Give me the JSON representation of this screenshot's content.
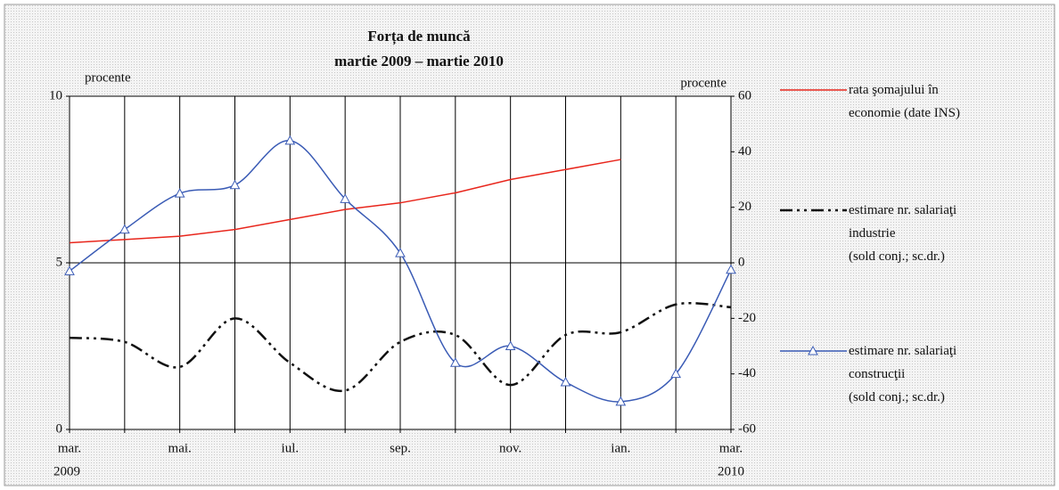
{
  "chart_data": {
    "type": "line",
    "title": "Forța de muncă",
    "subtitle": "martie 2009 – martie 2010",
    "y_label": "procente",
    "y2_label": "procente",
    "categories": [
      "mar.",
      null,
      "mai.",
      null,
      "iul.",
      null,
      "sep.",
      null,
      "nov.",
      null,
      "ian.",
      null,
      "mar."
    ],
    "category_years": [
      "2009",
      null,
      null,
      null,
      null,
      null,
      null,
      null,
      null,
      null,
      null,
      null,
      "2010"
    ],
    "ylim": [
      0,
      10
    ],
    "yticks": [
      0,
      5,
      10
    ],
    "y2lim": [
      -60,
      60
    ],
    "y2ticks": [
      -60,
      -40,
      -20,
      0,
      20,
      40,
      60
    ],
    "grid": "x",
    "series": [
      {
        "name": "rata şomajului în\neconomie (date INS)",
        "color": "#e8261c",
        "style": "solid",
        "smooth": false,
        "values": [
          5.6,
          5.7,
          5.8,
          6.0,
          6.3,
          6.6,
          6.8,
          7.1,
          7.5,
          7.8,
          8.1,
          null,
          null
        ]
      },
      {
        "name": "estimare nr. salariaţi\nindustrie\n(sold conj.; sc.dr.)",
        "color": "#111111",
        "style": "dashdot",
        "smooth": true,
        "axis": "y2",
        "values": [
          -27,
          -28.5,
          -37.5,
          -20,
          -36,
          -46,
          -28.5,
          -26,
          -44,
          -26,
          -25,
          -15,
          -16
        ]
      },
      {
        "name": "estimare nr. salariaţi\nconstrucţii\n(sold conj.; sc.dr.)",
        "color": "#3a5bb5",
        "style": "solid",
        "smooth": true,
        "marker": "triangle",
        "axis": "y2",
        "values": [
          -3,
          12,
          25,
          28,
          44,
          23,
          3.5,
          -36,
          -30,
          -43,
          -50,
          -40,
          -2.5
        ]
      }
    ]
  }
}
